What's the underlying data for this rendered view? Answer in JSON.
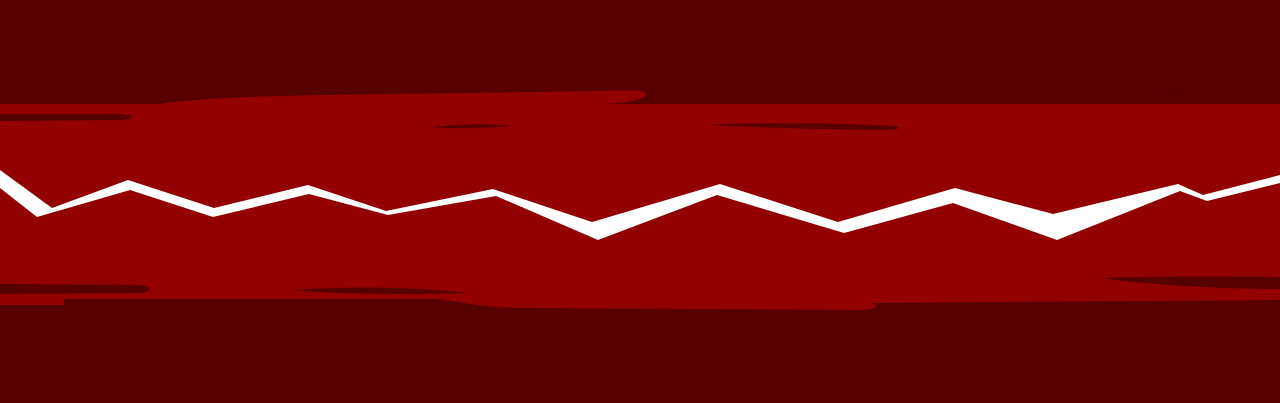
{
  "colors": {
    "background": "#560000",
    "band": "#930000",
    "streak": "#560000",
    "crack": "#ffffff"
  },
  "crack": {
    "icon": "zigzag-crack-shape"
  }
}
